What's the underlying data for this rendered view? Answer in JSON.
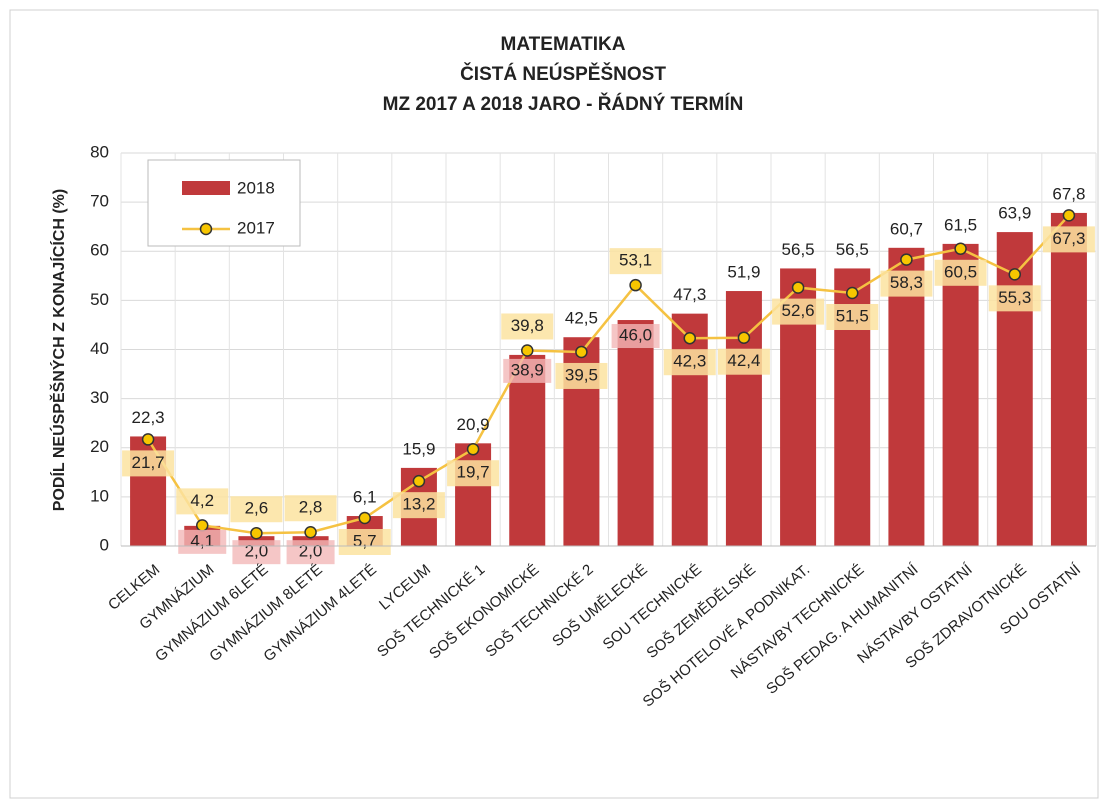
{
  "chart_data": {
    "type": "bar",
    "title": "MATEMATIKA",
    "subtitle": [
      "ČISTÁ NEÚSPĚŠNOST",
      "MZ 2017 A 2018 JARO - ŘÁDNÝ TERMÍN"
    ],
    "y_label": "PODÍL NEÚSPĚŠNÝCH Z KONAJÍCÍCH (%)",
    "categories": [
      "CELKEM",
      "GYMNÁZIUM",
      "GYMNÁZIUM 6LETÉ",
      "GYMNÁZIUM 8LETÉ",
      "GYMNÁZIUM 4LETÉ",
      "LYCEUM",
      "SOŠ TECHNICKÉ 1",
      "SOŠ EKONOMICKÉ",
      "SOŠ TECHNICKÉ 2",
      "SOŠ UMĚLECKÉ",
      "SOU TECHNICKÉ",
      "SOŠ ZEMĚDĚLSKÉ",
      "SOŠ HOTELOVÉ A PODNIKAT.",
      "NÁSTAVBY TECHNICKÉ",
      "SOŠ PEDAG. A HUMANITNÍ",
      "NÁSTAVBY OSTATNÍ",
      "SOŠ ZDRAVOTNICKÉ",
      "SOU OSTATNÍ"
    ],
    "series": [
      {
        "name": "2018",
        "type": "bar",
        "color": "#c0393b",
        "values": [
          22.3,
          4.1,
          2.0,
          2.0,
          6.1,
          15.9,
          20.9,
          38.9,
          42.5,
          46.0,
          47.3,
          51.9,
          56.5,
          56.5,
          60.7,
          61.5,
          63.9,
          67.8
        ],
        "value_labels": [
          "22,3",
          "4,1",
          "2,0",
          "2,0",
          "6,1",
          "15,9",
          "20,9",
          "38,9",
          "42,5",
          "46,0",
          "47,3",
          "51,9",
          "56,5",
          "56,5",
          "60,7",
          "61,5",
          "63,9",
          "67,8"
        ]
      },
      {
        "name": "2017",
        "type": "line",
        "color": "#f5c242",
        "values": [
          21.7,
          4.2,
          2.6,
          2.8,
          5.7,
          13.2,
          19.7,
          39.8,
          39.5,
          53.1,
          42.3,
          42.4,
          52.6,
          51.5,
          58.3,
          60.5,
          55.3,
          67.3
        ],
        "value_labels": [
          "21,7",
          "4,2",
          "2,6",
          "2,8",
          "5,7",
          "13,2",
          "19,7",
          "39,8",
          "39,5",
          "53,1",
          "42,3",
          "42,4",
          "52,6",
          "51,5",
          "58,3",
          "60,5",
          "55,3",
          "67,3"
        ]
      }
    ],
    "ylim": [
      0,
      80
    ],
    "yticks": [
      0,
      10,
      20,
      30,
      40,
      50,
      60,
      70,
      80
    ],
    "grid": true,
    "legend": "upper left"
  }
}
